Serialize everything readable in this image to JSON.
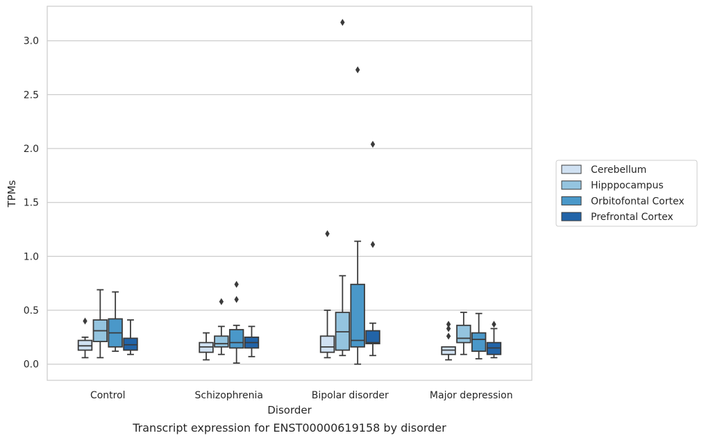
{
  "chart_data": {
    "type": "box",
    "title": "",
    "caption": "Transcript expression for ENST00000619158 by disorder",
    "xlabel": "Disorder",
    "ylabel": "TPMs",
    "ylim": [
      -0.15,
      3.32
    ],
    "yticks": [
      0.0,
      0.5,
      1.0,
      1.5,
      2.0,
      2.5,
      3.0
    ],
    "ytick_labels": [
      "0.0",
      "0.5",
      "1.0",
      "1.5",
      "2.0",
      "2.5",
      "3.0"
    ],
    "grid": "horizontal",
    "legend_position": "right",
    "categories": [
      "Control",
      "Schizophrenia",
      "Bipolar disorder",
      "Major depression"
    ],
    "series": [
      {
        "name": "Cerebellum",
        "color": "#d0e1f2",
        "boxes": [
          {
            "whisker_low": 0.06,
            "q1": 0.13,
            "median": 0.17,
            "q3": 0.22,
            "whisker_high": 0.25,
            "outliers": [
              0.4
            ]
          },
          {
            "whisker_low": 0.04,
            "q1": 0.11,
            "median": 0.16,
            "q3": 0.2,
            "whisker_high": 0.29,
            "outliers": []
          },
          {
            "whisker_low": 0.06,
            "q1": 0.11,
            "median": 0.16,
            "q3": 0.26,
            "whisker_high": 0.5,
            "outliers": [
              1.21
            ]
          },
          {
            "whisker_low": 0.04,
            "q1": 0.09,
            "median": 0.13,
            "q3": 0.16,
            "whisker_high": 0.16,
            "outliers": [
              0.26,
              0.33,
              0.37
            ]
          }
        ]
      },
      {
        "name": "Hipppocampus",
        "color": "#94c4df",
        "boxes": [
          {
            "whisker_low": 0.06,
            "q1": 0.21,
            "median": 0.31,
            "q3": 0.41,
            "whisker_high": 0.69,
            "outliers": []
          },
          {
            "whisker_low": 0.09,
            "q1": 0.16,
            "median": 0.19,
            "q3": 0.26,
            "whisker_high": 0.35,
            "outliers": [
              0.58
            ]
          },
          {
            "whisker_low": 0.08,
            "q1": 0.13,
            "median": 0.3,
            "q3": 0.48,
            "whisker_high": 0.82,
            "outliers": [
              3.17
            ]
          },
          {
            "whisker_low": 0.09,
            "q1": 0.2,
            "median": 0.24,
            "q3": 0.36,
            "whisker_high": 0.48,
            "outliers": []
          }
        ]
      },
      {
        "name": "Orbitofontal Cortex",
        "color": "#4a98c9",
        "boxes": [
          {
            "whisker_low": 0.12,
            "q1": 0.16,
            "median": 0.29,
            "q3": 0.42,
            "whisker_high": 0.67,
            "outliers": []
          },
          {
            "whisker_low": 0.01,
            "q1": 0.15,
            "median": 0.2,
            "q3": 0.32,
            "whisker_high": 0.36,
            "outliers": [
              0.6,
              0.74
            ]
          },
          {
            "whisker_low": 0.0,
            "q1": 0.16,
            "median": 0.22,
            "q3": 0.74,
            "whisker_high": 1.14,
            "outliers": [
              2.73
            ]
          },
          {
            "whisker_low": 0.05,
            "q1": 0.12,
            "median": 0.23,
            "q3": 0.29,
            "whisker_high": 0.47,
            "outliers": []
          }
        ]
      },
      {
        "name": "Prefrontal Cortex",
        "color": "#2264a8",
        "boxes": [
          {
            "whisker_low": 0.09,
            "q1": 0.13,
            "median": 0.18,
            "q3": 0.24,
            "whisker_high": 0.41,
            "outliers": []
          },
          {
            "whisker_low": 0.07,
            "q1": 0.15,
            "median": 0.2,
            "q3": 0.25,
            "whisker_high": 0.35,
            "outliers": []
          },
          {
            "whisker_low": 0.08,
            "q1": 0.19,
            "median": 0.2,
            "q3": 0.31,
            "whisker_high": 0.38,
            "outliers": [
              1.11,
              2.04
            ]
          },
          {
            "whisker_low": 0.06,
            "q1": 0.09,
            "median": 0.15,
            "q3": 0.2,
            "whisker_high": 0.33,
            "outliers": [
              0.37
            ]
          }
        ]
      }
    ]
  }
}
